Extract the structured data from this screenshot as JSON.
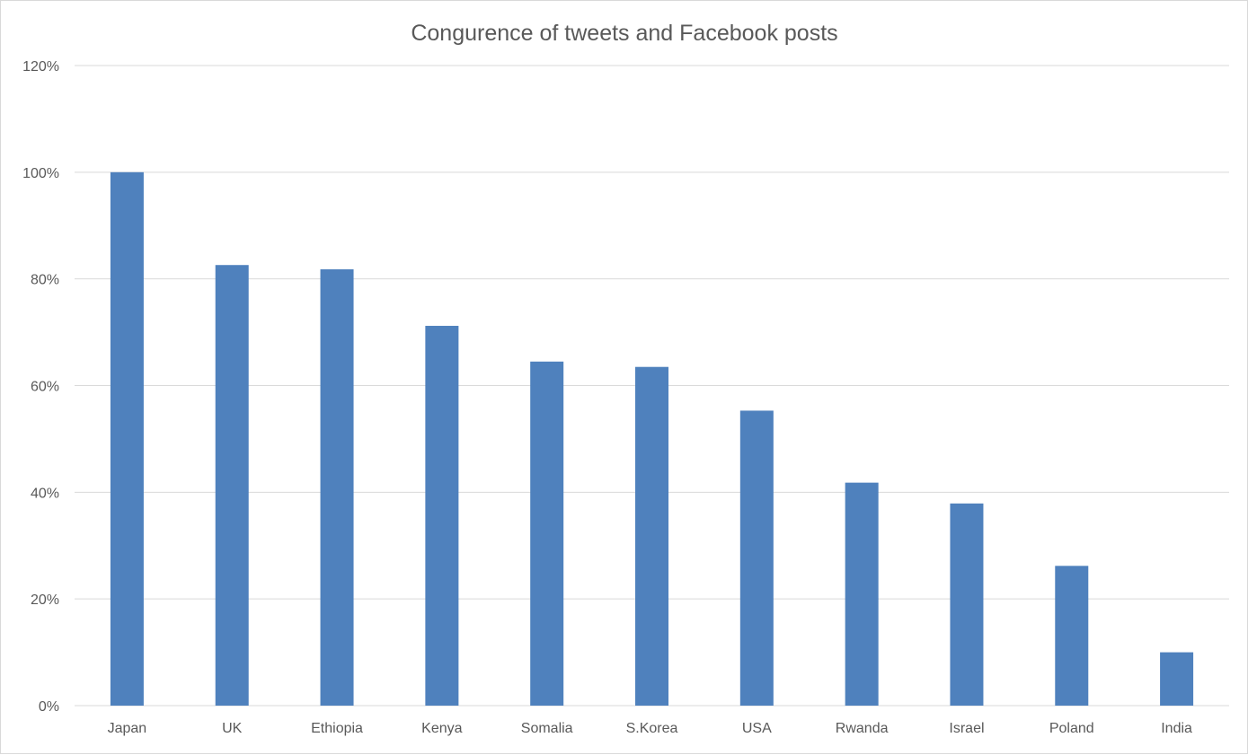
{
  "chart_data": {
    "type": "bar",
    "title": "Congurence of tweets and Facebook posts",
    "xlabel": "",
    "ylabel": "",
    "categories": [
      "Japan",
      "UK",
      "Ethiopia",
      "Kenya",
      "Somalia",
      "S.Korea",
      "USA",
      "Rwanda",
      "Israel",
      "Poland",
      "India"
    ],
    "values": [
      1.0,
      0.826,
      0.818,
      0.712,
      0.645,
      0.635,
      0.553,
      0.418,
      0.379,
      0.262,
      0.1
    ],
    "ylim": [
      0,
      1.2
    ],
    "y_ticks": [
      "0%",
      "20%",
      "40%",
      "60%",
      "80%",
      "100%",
      "120%"
    ],
    "y_tick_values": [
      0,
      0.2,
      0.4,
      0.6,
      0.8,
      1.0,
      1.2
    ],
    "grid": true,
    "legend": "none",
    "bar_color": "#4f81bd"
  }
}
